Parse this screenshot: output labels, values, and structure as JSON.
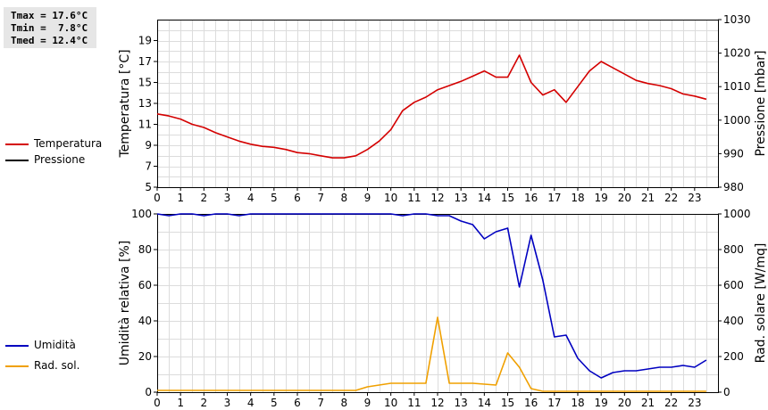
{
  "stats": {
    "tmax": "Tmax = 17.6°C",
    "tmin": "Tmin =  7.8°C",
    "tmed": "Tmed = 12.4°C"
  },
  "legend_top": [
    {
      "label": "Temperatura",
      "color": "#d40000"
    },
    {
      "label": "Pressione",
      "color": "#000000"
    }
  ],
  "legend_bottom": [
    {
      "label": "Umidità",
      "color": "#0000c0"
    },
    {
      "label": "Rad. sol.",
      "color": "#f0a000"
    }
  ],
  "chart_data": [
    {
      "type": "line",
      "xlabel": "",
      "ylabel": "Temperatura [°C]",
      "y2label": "Pressione [mbar]",
      "xlim": [
        0,
        24
      ],
      "xticks": [
        "0",
        "1",
        "2",
        "3",
        "4",
        "5",
        "6",
        "7",
        "8",
        "9",
        "10",
        "11",
        "12",
        "13",
        "14",
        "15",
        "16",
        "17",
        "18",
        "19",
        "20",
        "21",
        "22",
        "23"
      ],
      "ylim": [
        5,
        21
      ],
      "yticks": [
        "5",
        "7",
        "9",
        "11",
        "13",
        "15",
        "17",
        "19"
      ],
      "y2lim": [
        980,
        1030
      ],
      "y2ticks": [
        "980",
        "990",
        "1000",
        "1010",
        "1020",
        "1030"
      ],
      "grid": true,
      "series": [
        {
          "name": "Temperatura",
          "color": "#d40000",
          "axis": "left",
          "x": [
            0,
            0.5,
            1,
            1.5,
            2,
            2.5,
            3,
            3.5,
            4,
            4.5,
            5,
            5.5,
            6,
            6.5,
            7,
            7.5,
            8,
            8.5,
            9,
            9.5,
            10,
            10.5,
            11,
            11.5,
            12,
            12.5,
            13,
            13.5,
            14,
            14.5,
            15,
            15.5,
            16,
            16.5,
            17,
            17.5,
            18,
            18.5,
            19,
            19.5,
            20,
            20.5,
            21,
            21.5,
            22,
            22.5,
            23,
            23.5
          ],
          "y": [
            12.0,
            11.8,
            11.5,
            11.0,
            10.7,
            10.2,
            9.8,
            9.4,
            9.1,
            8.9,
            8.8,
            8.6,
            8.3,
            8.2,
            8.0,
            7.8,
            7.8,
            8.0,
            8.6,
            9.4,
            10.5,
            12.3,
            13.1,
            13.6,
            14.3,
            14.7,
            15.1,
            15.6,
            16.1,
            15.5,
            15.5,
            17.6,
            15.0,
            13.8,
            14.3,
            13.1,
            14.6,
            16.1,
            17.0,
            16.4,
            15.8,
            15.2,
            14.9,
            14.7,
            14.4,
            13.9,
            13.7,
            13.4
          ]
        },
        {
          "name": "Pressione",
          "color": "#000000",
          "axis": "right",
          "x": [],
          "y": []
        }
      ]
    },
    {
      "type": "line",
      "xlabel": "",
      "ylabel": "Umidità relativa [%]",
      "y2label": "Rad. solare [W/mq]",
      "xlim": [
        0,
        24
      ],
      "xticks": [
        "0",
        "1",
        "2",
        "3",
        "4",
        "5",
        "6",
        "7",
        "8",
        "9",
        "10",
        "11",
        "12",
        "13",
        "14",
        "15",
        "16",
        "17",
        "18",
        "19",
        "20",
        "21",
        "22",
        "23"
      ],
      "ylim": [
        0,
        100
      ],
      "yticks": [
        "0",
        "20",
        "40",
        "60",
        "80",
        "100"
      ],
      "y2lim": [
        0,
        1000
      ],
      "y2ticks": [
        "0",
        "200",
        "400",
        "600",
        "800",
        "1000"
      ],
      "grid": true,
      "series": [
        {
          "name": "Umidità",
          "color": "#0000c0",
          "axis": "left",
          "x": [
            0,
            0.5,
            1,
            1.5,
            2,
            2.5,
            3,
            3.5,
            4,
            4.5,
            5,
            5.5,
            6,
            6.5,
            7,
            7.5,
            8,
            8.5,
            9,
            9.5,
            10,
            10.5,
            11,
            11.5,
            12,
            12.5,
            13,
            13.5,
            14,
            14.5,
            15,
            15.5,
            16,
            16.5,
            17,
            17.5,
            18,
            18.5,
            19,
            19.5,
            20,
            20.5,
            21,
            21.5,
            22,
            22.5,
            23,
            23.5
          ],
          "y": [
            100,
            99,
            100,
            100,
            99,
            100,
            100,
            99,
            100,
            100,
            100,
            100,
            100,
            100,
            100,
            100,
            100,
            100,
            100,
            100,
            100,
            99,
            100,
            100,
            99,
            99,
            96,
            94,
            86,
            90,
            92,
            59,
            88,
            63,
            31,
            32,
            19,
            12,
            8,
            11,
            12,
            12,
            13,
            14,
            14,
            15,
            14,
            18
          ]
        },
        {
          "name": "Rad. sol.",
          "color": "#f0a000",
          "axis": "right",
          "x": [
            0,
            0.5,
            1,
            1.5,
            2,
            2.5,
            3,
            3.5,
            4,
            4.5,
            5,
            5.5,
            6,
            6.5,
            7,
            7.5,
            8,
            8.5,
            9,
            9.5,
            10,
            10.5,
            11,
            11.5,
            12,
            12.5,
            13,
            13.5,
            14,
            14.5,
            15,
            15.5,
            16,
            16.5,
            17,
            17.5,
            18,
            18.5,
            19,
            19.5,
            20,
            20.5,
            21,
            21.5,
            22,
            22.5,
            23,
            23.5
          ],
          "y": [
            10,
            10,
            10,
            10,
            10,
            10,
            10,
            10,
            10,
            10,
            10,
            10,
            10,
            10,
            10,
            10,
            10,
            10,
            30,
            40,
            50,
            50,
            50,
            50,
            420,
            50,
            50,
            50,
            45,
            40,
            220,
            140,
            20,
            5,
            5,
            5,
            5,
            5,
            5,
            5,
            5,
            5,
            5,
            5,
            5,
            5,
            5,
            5
          ]
        }
      ]
    }
  ]
}
